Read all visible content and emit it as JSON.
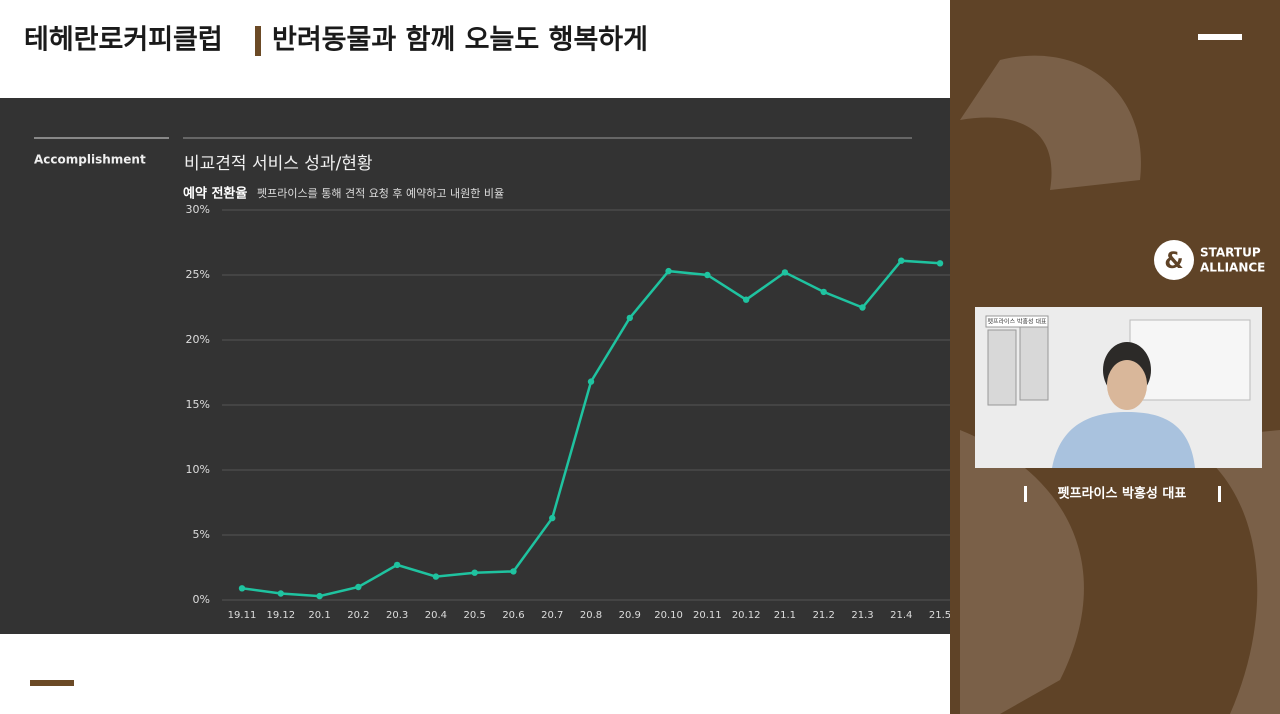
{
  "header": {
    "brand": "테헤란로커피클럽",
    "title": "반려동물과 함께 오늘도 행복하게"
  },
  "section_label": "Accomplishment",
  "chart_data": {
    "type": "line",
    "title": "비교견적 서비스 성과/현황",
    "subtitle": "예약 전환율",
    "note": "펫프라이스를 통해 견적 요청 후 예약하고 내원한 비율",
    "categories": [
      "19.11",
      "19.12",
      "20.1",
      "20.2",
      "20.3",
      "20.4",
      "20.5",
      "20.6",
      "20.7",
      "20.8",
      "20.9",
      "20.10",
      "20.11",
      "20.12",
      "21.1",
      "21.2",
      "21.3",
      "21.4",
      "21.5"
    ],
    "values": [
      0.9,
      0.5,
      0.3,
      1.0,
      2.7,
      1.8,
      2.1,
      2.2,
      6.3,
      16.8,
      21.7,
      25.3,
      25.0,
      23.1,
      25.2,
      23.7,
      22.5,
      26.1,
      25.9
    ],
    "color": "#1fc3a0",
    "ylim": [
      0,
      30
    ],
    "yticks": [
      {
        "value": 0,
        "label": "0%"
      },
      {
        "value": 5,
        "label": "5%"
      },
      {
        "value": 10,
        "label": "10%"
      },
      {
        "value": 15,
        "label": "15%"
      },
      {
        "value": 20,
        "label": "20%"
      },
      {
        "value": 25,
        "label": "25%"
      },
      {
        "value": 30,
        "label": "30%"
      }
    ],
    "grid": true
  },
  "sidebar": {
    "logo_mark": "&",
    "logo_line1": "STARTUP",
    "logo_line2": "ALLIANCE",
    "video_tag": "펫프라이스 박홍성 대표",
    "speaker": "펫프라이스 박홍성 대표"
  }
}
